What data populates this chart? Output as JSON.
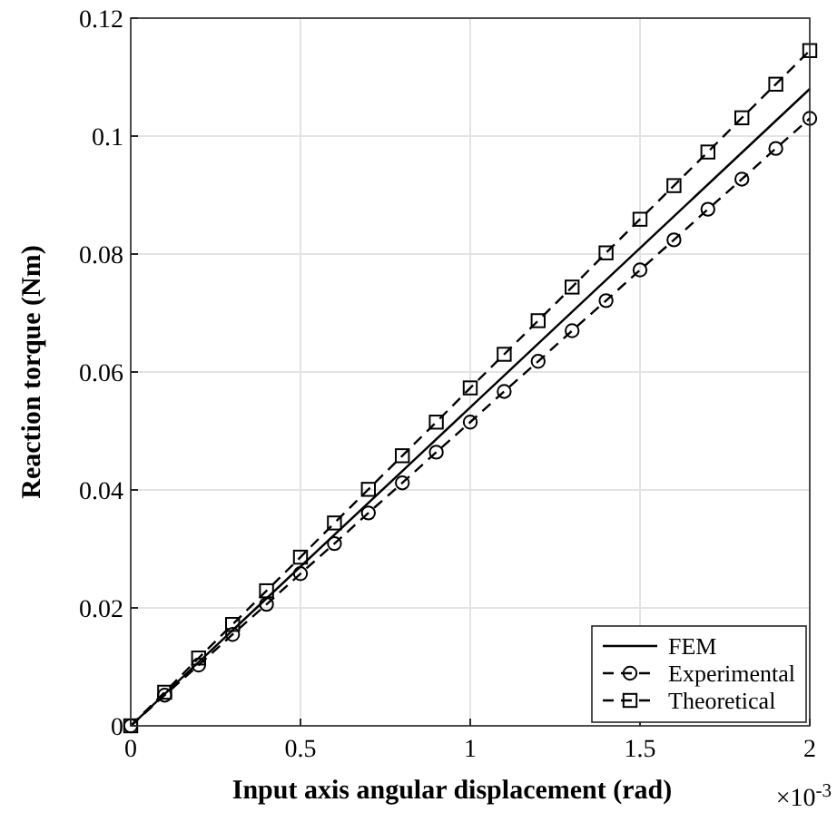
{
  "chart_data": {
    "type": "line",
    "xlabel": "Input axis angular displacement (rad)",
    "ylabel": "Reaction torque (Nm)",
    "annotations": [
      "×10$^{-3}$"
    ],
    "xlim": [
      0,
      2
    ],
    "xticks": [
      0,
      0.5,
      1,
      1.5,
      2
    ],
    "ylim": [
      0,
      0.12
    ],
    "yticks": [
      0,
      0.02,
      0.04,
      0.06,
      0.08,
      0.1,
      0.12
    ],
    "grid": true,
    "legend": "bottom right",
    "series": [
      {
        "name": "FEM",
        "color": "#000000",
        "x": [
          0,
          2
        ],
        "values": [
          0,
          0.108
        ],
        "line_style": "solid"
      },
      {
        "name": "Experimental",
        "color": "#000000",
        "x": [
          0,
          0.1,
          0.2,
          0.3,
          0.4,
          0.5,
          0.6,
          0.7,
          0.8,
          0.9,
          1,
          1.1,
          1.2,
          1.3,
          1.4,
          1.5,
          1.6,
          1.7,
          1.8,
          1.9,
          2
        ],
        "values": [
          0,
          0.0052,
          0.0103,
          0.0155,
          0.0206,
          0.0258,
          0.0309,
          0.0361,
          0.0412,
          0.0464,
          0.0515,
          0.0567,
          0.0618,
          0.067,
          0.0721,
          0.0773,
          0.0824,
          0.0876,
          0.0927,
          0.0979,
          0.103
        ],
        "marker": "circle",
        "line_style": "dashed"
      },
      {
        "name": "Theoretical",
        "color": "#000000",
        "x": [
          0,
          0.1,
          0.2,
          0.3,
          0.4,
          0.5,
          0.6,
          0.7,
          0.8,
          0.9,
          1,
          1.1,
          1.2,
          1.3,
          1.4,
          1.5,
          1.6,
          1.7,
          1.8,
          1.9,
          2
        ],
        "values": [
          0,
          0.0057,
          0.0115,
          0.0172,
          0.0229,
          0.0286,
          0.0344,
          0.0401,
          0.0458,
          0.0515,
          0.0573,
          0.063,
          0.0687,
          0.0744,
          0.0802,
          0.0859,
          0.0916,
          0.0973,
          0.1031,
          0.1088,
          0.1145
        ],
        "marker": "square",
        "line_style": "dashed"
      }
    ]
  }
}
